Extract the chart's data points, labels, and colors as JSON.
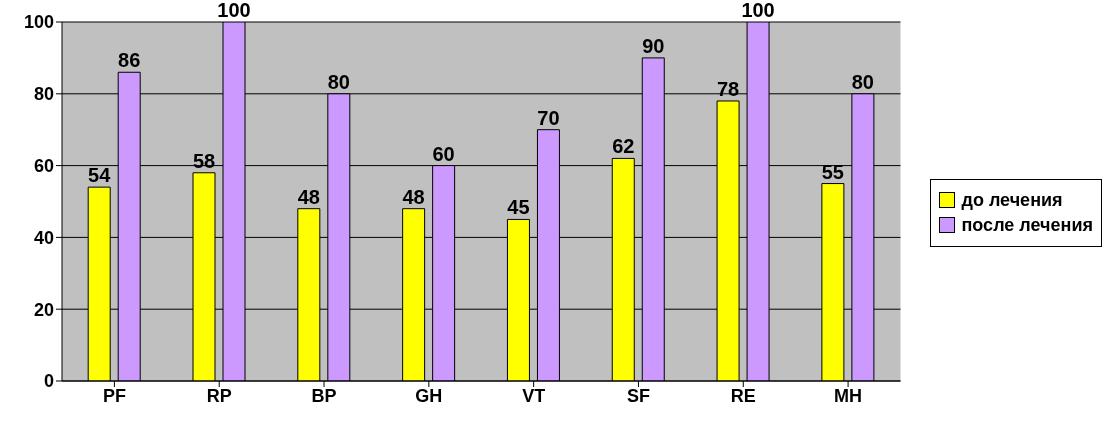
{
  "chart_data": {
    "type": "bar",
    "categories": [
      "PF",
      "RP",
      "BP",
      "GH",
      "VT",
      "SF",
      "RE",
      "MH"
    ],
    "series": [
      {
        "name": "до лечения",
        "color": "#ffff00",
        "values": [
          54,
          58,
          48,
          48,
          45,
          62,
          78,
          55
        ]
      },
      {
        "name": "после лечения",
        "color": "#cc99ff",
        "values": [
          86,
          100,
          80,
          60,
          70,
          90,
          100,
          80
        ]
      }
    ],
    "ylim": [
      0,
      100
    ],
    "yticks": [
      0,
      20,
      40,
      60,
      80,
      100
    ],
    "grid": "y",
    "legend": "right",
    "data_labels": true
  }
}
